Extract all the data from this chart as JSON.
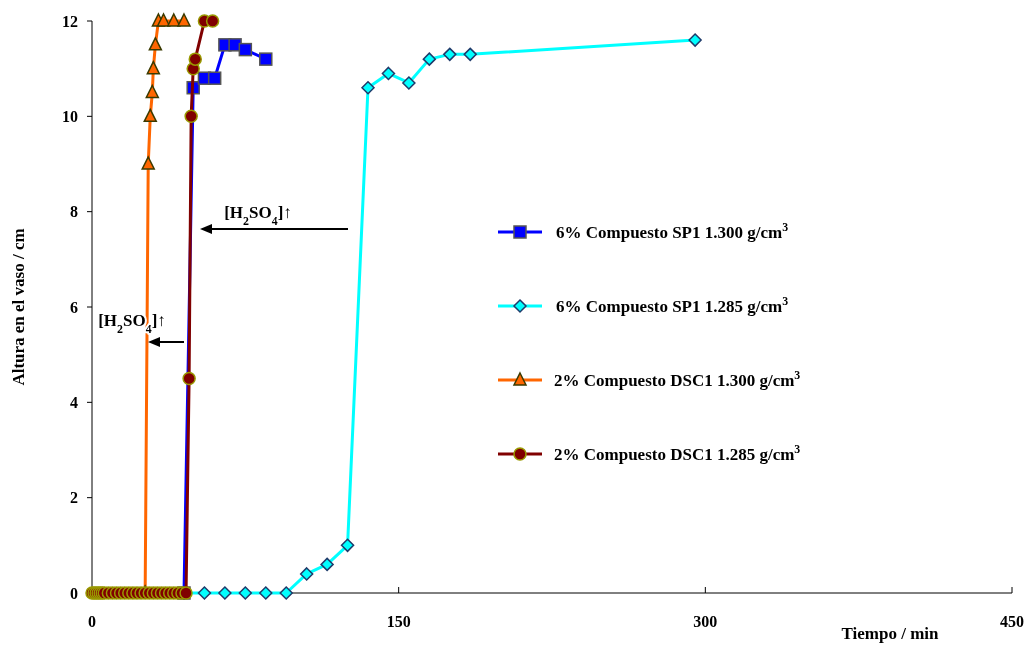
{
  "chart_data": {
    "type": "line",
    "xlabel": "Tiempo / min",
    "ylabel": "Altura en el vaso / cm",
    "xlim": [
      0,
      450
    ],
    "ylim": [
      0,
      12
    ],
    "xticks": [
      0,
      150,
      300,
      450
    ],
    "yticks": [
      0,
      2,
      4,
      6,
      8,
      10,
      12
    ],
    "grid": false,
    "legend": "right",
    "line_style": "solid",
    "series": [
      {
        "name": "6% Compuesto SP1 1.300 g/cm$^{3}$",
        "color": "#0000ff",
        "marker": "square",
        "x": [
          45,
          49.5,
          55,
          60,
          65,
          70,
          75,
          85
        ],
        "values": [
          0,
          10.6,
          10.8,
          10.8,
          11.5,
          11.5,
          11.4,
          11.2
        ]
      },
      {
        "name": "6% Compuesto SP1 1.285 g/cm$^{3}$",
        "color": "#00ffff",
        "marker": "diamond",
        "x": [
          45,
          55,
          65,
          75,
          85,
          95,
          105,
          115,
          125,
          135,
          145,
          155,
          165,
          175,
          185,
          295
        ],
        "values": [
          0,
          0,
          0,
          0,
          0,
          0,
          0.4,
          0.6,
          1.0,
          10.6,
          10.9,
          10.7,
          11.2,
          11.3,
          11.3,
          11.6
        ]
      },
      {
        "name": "2% Compuesto DSC1 1.300 g/cm$^{3}$",
        "color": "#ff6600",
        "marker": "triangle",
        "x": [
          26,
          27.5,
          28.5,
          29.5,
          30,
          31,
          32.5,
          35,
          40,
          45
        ],
        "values": [
          0,
          9,
          10,
          10.5,
          11,
          11.5,
          12,
          12,
          12,
          12
        ]
      },
      {
        "name": "2% Compuesto DSC1 1.285 g/cm$^{3}$",
        "color": "#800000",
        "marker": "circle",
        "x": [
          0,
          1,
          2,
          3,
          4,
          5,
          6,
          8,
          10,
          12,
          14,
          16,
          18,
          20,
          22,
          24,
          26,
          28,
          30,
          32,
          34,
          36,
          38,
          40,
          42,
          44,
          46,
          47.5,
          48.5,
          49.5,
          50.5,
          55,
          59
        ],
        "values": [
          0,
          0,
          0,
          0,
          0,
          0,
          0,
          0,
          0,
          0,
          0,
          0,
          0,
          0,
          0,
          0,
          0,
          0,
          0,
          0,
          0,
          0,
          0,
          0,
          0,
          0,
          0,
          4.5,
          10,
          11,
          11.2,
          12,
          12
        ]
      }
    ],
    "annotations": [
      "[H$_{2}$SO$_{4}$]↑",
      "[H$_{2}$SO$_{4}$]↑"
    ]
  }
}
